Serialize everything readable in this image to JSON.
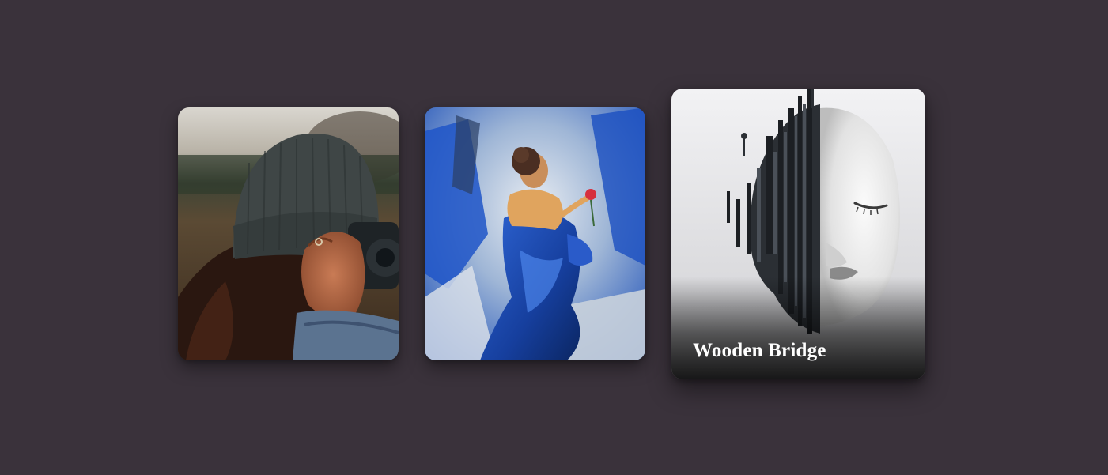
{
  "gallery": {
    "cards": [
      {
        "image_subject": "photographer-in-beanie",
        "title": ""
      },
      {
        "image_subject": "woman-in-blue-dress-painting",
        "title": ""
      },
      {
        "image_subject": "half-face-abstract-sculpture",
        "title": "Wooden Bridge"
      }
    ]
  },
  "colors": {
    "background": "#3a323b",
    "caption_text": "#ffffff"
  }
}
